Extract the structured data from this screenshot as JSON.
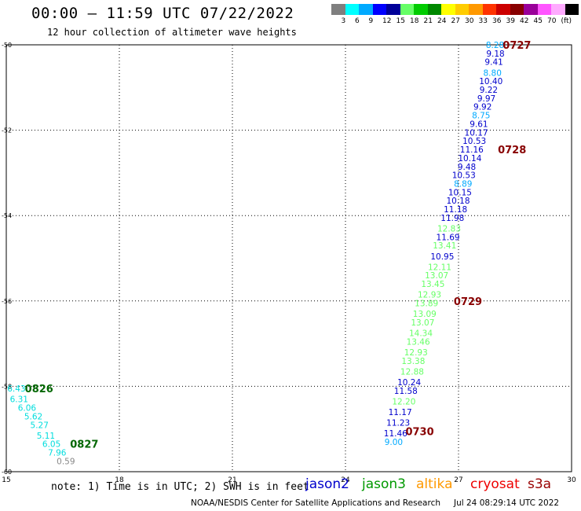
{
  "header": {
    "title": "00:00 — 11:59 UTC 07/22/2022",
    "subtitle": "12 hour collection of altimeter wave heights"
  },
  "colorbar": {
    "colors": [
      "#7f7f7f",
      "#00ffff",
      "#00aaff",
      "#0000ff",
      "#000099",
      "#66ff66",
      "#00cc00",
      "#008800",
      "#ffff00",
      "#ffcc00",
      "#ff9900",
      "#ff3300",
      "#cc0000",
      "#880000",
      "#990099",
      "#ff55ff",
      "#ffaaff",
      "#000000"
    ],
    "labels": [
      "3",
      "6",
      "9",
      "12",
      "15",
      "18",
      "21",
      "24",
      "27",
      "30",
      "33",
      "36",
      "39",
      "42",
      "45",
      "70",
      "(ft)"
    ]
  },
  "notes": "note: 1) Time is in UTC; 2) SWH is in feet",
  "satellites": [
    {
      "name": "jason2",
      "color": "#0000cc"
    },
    {
      "name": "jason3",
      "color": "#009900"
    },
    {
      "name": "altika",
      "color": "#ff9900"
    },
    {
      "name": "cryosat",
      "color": "#ee0000"
    },
    {
      "name": "s3a",
      "color": "#990000"
    }
  ],
  "footer": {
    "source": "NOAA/NESDIS Center for Satellite Applications and Research",
    "timestamp": "Jul 24 08:29:14 UTC 2022"
  },
  "chart_data": {
    "type": "scatter",
    "xlim": [
      15,
      30
    ],
    "ylim": [
      -60,
      -50
    ],
    "xticks": [
      15,
      18,
      21,
      24,
      27,
      30
    ],
    "yticks": [
      -50,
      -52,
      -54,
      -56,
      -58,
      -60
    ],
    "grid": true,
    "points": [
      {
        "x": 27.97,
        "y": -50.0,
        "v": "8.28",
        "c": "#00aaff"
      },
      {
        "x": 27.98,
        "y": -50.2,
        "v": "9.18",
        "c": "#0000cc"
      },
      {
        "x": 27.94,
        "y": -50.4,
        "v": "9.41",
        "c": "#0000cc"
      },
      {
        "x": 27.9,
        "y": -50.65,
        "v": "8.80",
        "c": "#00aaff"
      },
      {
        "x": 27.86,
        "y": -50.85,
        "v": "10.40",
        "c": "#0000cc"
      },
      {
        "x": 27.8,
        "y": -51.05,
        "v": "9.22",
        "c": "#0000cc"
      },
      {
        "x": 27.74,
        "y": -51.25,
        "v": "9.97",
        "c": "#0000cc"
      },
      {
        "x": 27.64,
        "y": -51.45,
        "v": "9.92",
        "c": "#0000cc"
      },
      {
        "x": 27.6,
        "y": -51.65,
        "v": "8.75",
        "c": "#00aaff"
      },
      {
        "x": 27.54,
        "y": -51.85,
        "v": "9.61",
        "c": "#0000cc"
      },
      {
        "x": 27.47,
        "y": -52.05,
        "v": "10.17",
        "c": "#0000cc"
      },
      {
        "x": 27.42,
        "y": -52.25,
        "v": "10.53",
        "c": "#0000cc"
      },
      {
        "x": 27.35,
        "y": -52.45,
        "v": "11.16",
        "c": "#0000cc"
      },
      {
        "x": 27.3,
        "y": -52.65,
        "v": "10.14",
        "c": "#0000cc"
      },
      {
        "x": 27.22,
        "y": -52.85,
        "v": "9.48",
        "c": "#0000cc"
      },
      {
        "x": 27.14,
        "y": -53.05,
        "v": "10.53",
        "c": "#0000cc"
      },
      {
        "x": 27.12,
        "y": -53.25,
        "v": "8.89",
        "c": "#00aaff"
      },
      {
        "x": 27.04,
        "y": -53.45,
        "v": "10.15",
        "c": "#0000cc"
      },
      {
        "x": 26.99,
        "y": -53.65,
        "v": "10.18",
        "c": "#0000cc"
      },
      {
        "x": 26.92,
        "y": -53.85,
        "v": "11.18",
        "c": "#0000cc"
      },
      {
        "x": 26.84,
        "y": -54.05,
        "v": "11.98",
        "c": "#0000cc"
      },
      {
        "x": 26.75,
        "y": -54.3,
        "v": "12.83",
        "c": "#66ff66"
      },
      {
        "x": 26.72,
        "y": -54.5,
        "v": "11.69",
        "c": "#0000cc"
      },
      {
        "x": 26.63,
        "y": -54.7,
        "v": "13.41",
        "c": "#66ff66"
      },
      {
        "x": 26.57,
        "y": -54.95,
        "v": "10.95",
        "c": "#0000cc"
      },
      {
        "x": 26.5,
        "y": -55.2,
        "v": "12.11",
        "c": "#66ff66"
      },
      {
        "x": 26.42,
        "y": -55.4,
        "v": "13.07",
        "c": "#66ff66"
      },
      {
        "x": 26.32,
        "y": -55.6,
        "v": "13.45",
        "c": "#66ff66"
      },
      {
        "x": 26.23,
        "y": -55.85,
        "v": "12.93",
        "c": "#66ff66"
      },
      {
        "x": 26.15,
        "y": -56.05,
        "v": "13.89",
        "c": "#66ff66"
      },
      {
        "x": 26.1,
        "y": -56.3,
        "v": "13.09",
        "c": "#66ff66"
      },
      {
        "x": 26.05,
        "y": -56.5,
        "v": "13.07",
        "c": "#66ff66"
      },
      {
        "x": 26.0,
        "y": -56.75,
        "v": "14.34",
        "c": "#66ff66"
      },
      {
        "x": 25.93,
        "y": -56.95,
        "v": "13.46",
        "c": "#66ff66"
      },
      {
        "x": 25.87,
        "y": -57.2,
        "v": "12.93",
        "c": "#66ff66"
      },
      {
        "x": 25.8,
        "y": -57.4,
        "v": "13.38",
        "c": "#66ff66"
      },
      {
        "x": 25.77,
        "y": -57.65,
        "v": "12.88",
        "c": "#66ff66"
      },
      {
        "x": 25.69,
        "y": -57.9,
        "v": "10.24",
        "c": "#0000cc"
      },
      {
        "x": 25.6,
        "y": -58.1,
        "v": "11.58",
        "c": "#0000cc"
      },
      {
        "x": 25.55,
        "y": -58.35,
        "v": "12.20",
        "c": "#66ff66"
      },
      {
        "x": 25.45,
        "y": -58.6,
        "v": "11.17",
        "c": "#0000cc"
      },
      {
        "x": 25.4,
        "y": -58.85,
        "v": "11.23",
        "c": "#0000cc"
      },
      {
        "x": 25.33,
        "y": -59.1,
        "v": "11.46",
        "c": "#0000cc"
      },
      {
        "x": 25.28,
        "y": -59.3,
        "v": "9.00",
        "c": "#00aaff"
      },
      {
        "x": 15.27,
        "y": -58.05,
        "v": "6.43",
        "c": "#00dddd"
      },
      {
        "x": 15.34,
        "y": -58.3,
        "v": "6.31",
        "c": "#00dddd"
      },
      {
        "x": 15.55,
        "y": -58.5,
        "v": "6.06",
        "c": "#00dddd"
      },
      {
        "x": 15.72,
        "y": -58.7,
        "v": "5.62",
        "c": "#00dddd"
      },
      {
        "x": 15.88,
        "y": -58.9,
        "v": "5.27",
        "c": "#00dddd"
      },
      {
        "x": 16.05,
        "y": -59.15,
        "v": "5.11",
        "c": "#00dddd"
      },
      {
        "x": 16.2,
        "y": -59.35,
        "v": "6.05",
        "c": "#00dddd"
      },
      {
        "x": 16.35,
        "y": -59.55,
        "v": "7.96",
        "c": "#00dddd"
      },
      {
        "x": 16.58,
        "y": -59.75,
        "v": "0.59",
        "c": "#888888"
      }
    ],
    "annotations": [
      {
        "x": 28.55,
        "y": -50.0,
        "text": "0727",
        "c": "#880000"
      },
      {
        "x": 28.42,
        "y": -52.45,
        "text": "0728",
        "c": "#880000"
      },
      {
        "x": 27.25,
        "y": -56.0,
        "text": "0729",
        "c": "#880000"
      },
      {
        "x": 25.97,
        "y": -59.05,
        "text": "0730",
        "c": "#880000"
      },
      {
        "x": 15.87,
        "y": -58.05,
        "text": "0826",
        "c": "#006600"
      },
      {
        "x": 17.07,
        "y": -59.35,
        "text": "0827",
        "c": "#006600"
      }
    ]
  }
}
